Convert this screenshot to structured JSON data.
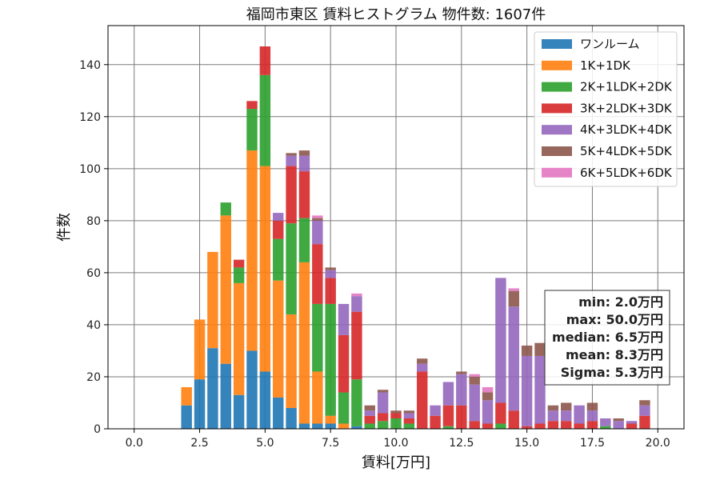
{
  "chart_data": {
    "type": "bar",
    "stacked": true,
    "title": "福岡市東区 賃料ヒストグラム 物件数: 1607件",
    "xlabel": "賃料[万円]",
    "ylabel": "件数",
    "xlim": [
      -1.0,
      21.0
    ],
    "ylim": [
      0,
      155
    ],
    "xticks": [
      0.0,
      2.5,
      5.0,
      7.5,
      10.0,
      12.5,
      15.0,
      17.5,
      20.0
    ],
    "xtick_labels": [
      "0.0",
      "2.5",
      "5.0",
      "7.5",
      "10.0",
      "12.5",
      "15.0",
      "17.5",
      "20.0"
    ],
    "yticks": [
      0,
      20,
      40,
      60,
      80,
      100,
      120,
      140
    ],
    "ytick_labels": [
      "0",
      "20",
      "40",
      "60",
      "80",
      "100",
      "120",
      "140"
    ],
    "grid": true,
    "legend_position": "top-right",
    "bin_width": 0.5,
    "x": [
      2.0,
      2.5,
      3.0,
      3.5,
      4.0,
      4.5,
      5.0,
      5.5,
      6.0,
      6.5,
      7.0,
      7.5,
      8.0,
      8.5,
      9.0,
      9.5,
      10.0,
      10.5,
      11.0,
      11.5,
      12.0,
      12.5,
      13.0,
      13.5,
      14.0,
      14.5,
      15.0,
      15.5,
      16.0,
      16.5,
      17.0,
      17.5,
      18.0,
      18.5,
      19.0,
      19.5
    ],
    "series": [
      {
        "name": "ワンルーム",
        "color": "#1f77b4",
        "values": [
          9,
          19,
          31,
          25,
          13,
          30,
          22,
          12,
          8,
          2,
          2,
          2,
          0,
          1,
          0,
          0,
          0,
          0,
          0,
          0,
          0,
          0,
          0,
          0,
          0,
          0,
          0,
          0,
          0,
          0,
          0,
          0,
          0,
          0,
          0,
          0
        ]
      },
      {
        "name": "1K+1DK",
        "color": "#ff7f0e",
        "values": [
          7,
          23,
          37,
          57,
          43,
          77,
          79,
          45,
          36,
          62,
          20,
          3,
          2,
          0,
          0,
          0,
          0,
          0,
          0,
          0,
          0,
          0,
          0,
          0,
          0,
          0,
          0,
          0,
          0,
          0,
          0,
          0,
          0,
          0,
          0,
          0
        ]
      },
      {
        "name": "2K+1LDK+2DK",
        "color": "#2ca02c",
        "values": [
          0,
          0,
          0,
          5,
          6,
          16,
          35,
          16,
          35,
          17,
          26,
          43,
          12,
          18,
          2,
          3,
          4,
          2,
          0,
          0,
          1,
          0,
          0,
          0,
          2,
          0,
          0,
          0,
          0,
          0,
          0,
          0,
          1,
          0,
          0,
          0
        ]
      },
      {
        "name": "3K+2LDK+3DK",
        "color": "#d62728",
        "values": [
          0,
          0,
          0,
          0,
          3,
          3,
          11,
          7,
          22,
          18,
          23,
          10,
          22,
          26,
          3,
          3,
          2,
          2,
          22,
          5,
          8,
          9,
          3,
          2,
          8,
          7,
          1,
          2,
          3,
          3,
          2,
          3,
          0,
          0,
          2,
          5
        ]
      },
      {
        "name": "4K+3LDK+4DK",
        "color": "#9467bd",
        "values": [
          0,
          0,
          0,
          0,
          0,
          0,
          0,
          3,
          4,
          6,
          9,
          3,
          12,
          6,
          2,
          8,
          0,
          2,
          3,
          4,
          9,
          12,
          14,
          9,
          48,
          40,
          27,
          26,
          4,
          4,
          7,
          4,
          3,
          3,
          1,
          4
        ]
      },
      {
        "name": "5K+4LDK+5DK",
        "color": "#8c564b",
        "values": [
          0,
          0,
          0,
          0,
          0,
          0,
          0,
          0,
          1,
          2,
          1,
          1,
          0,
          0,
          2,
          1,
          1,
          1,
          2,
          0,
          0,
          1,
          3,
          3,
          0,
          6,
          4,
          5,
          2,
          3,
          0,
          3,
          0,
          1,
          0,
          2
        ]
      },
      {
        "name": "6K+5LDK+6DK",
        "color": "#e377c2",
        "values": [
          0,
          0,
          0,
          0,
          0,
          0,
          0,
          0,
          0,
          0,
          1,
          0,
          0,
          1,
          0,
          0,
          0,
          0,
          0,
          0,
          0,
          0,
          1,
          2,
          0,
          1,
          0,
          0,
          0,
          0,
          0,
          0,
          0,
          0,
          0,
          0
        ]
      }
    ],
    "stats": {
      "min": "min: 2.0万円",
      "max": "max: 50.0万円",
      "median": "median: 6.5万円",
      "mean": "mean: 8.3万円",
      "sigma": "Sigma: 5.3万円"
    }
  }
}
